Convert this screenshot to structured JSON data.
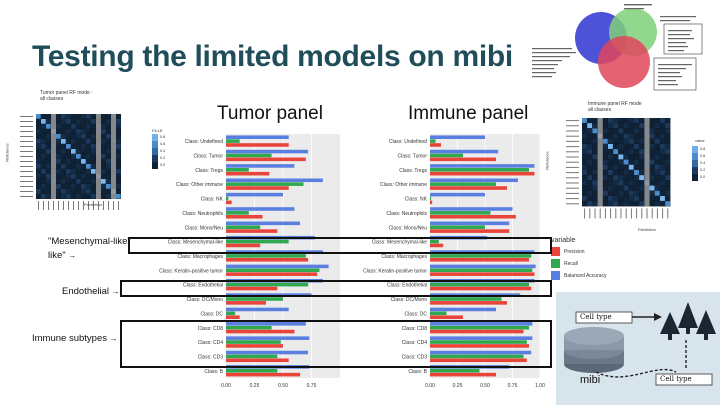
{
  "slide": {
    "title": "Testing the limited models on mibi",
    "tumor_panel_label": "Tumor panel",
    "immune_panel_label": "Immune panel"
  },
  "annotations": {
    "mesenchymal": "\"Mesenchymal-like\"",
    "endothelial": "Endothelial",
    "immune_subtypes": "Immune subtypes",
    "arrow": "→"
  },
  "heatmap_left": {
    "title_line1": "Tumor panel RF mode :",
    "title_line2": "all classes",
    "fill_label": "FILLE",
    "y_label": "Reference",
    "x_label": "Prediction",
    "legend_ticks": [
      "0.8",
      "0.6",
      "0.4",
      "0.2",
      "0.0"
    ]
  },
  "heatmap_right": {
    "title_line1": "Immune panel RF mode",
    "title_line2": "all classes",
    "fill_label": "value",
    "y_label": "Reference",
    "x_label": "Prediction",
    "legend_ticks": [
      "0.8",
      "0.6",
      "0.4",
      "0.2",
      "0.0"
    ]
  },
  "legend": {
    "title": "variable",
    "items": [
      {
        "label": "Precision",
        "color": "#e8443a"
      },
      {
        "label": "Recall",
        "color": "#2fa84f"
      },
      {
        "label": "Balanced Accuracy",
        "color": "#5b7fe0"
      }
    ]
  },
  "diagram": {
    "top_label": "Cell type",
    "bottom_label": "Cell type",
    "mibi_label": "mibi"
  },
  "chart_data": [
    {
      "type": "bar",
      "orientation": "horizontal",
      "categories": [
        "Class: Undefined",
        "Class: Tumor",
        "Class: Tregs",
        "Class: Other immune",
        "Class: NK",
        "Class: Neutrophils",
        "Class: Mono/Neu",
        "Class: Mesenchymal-like",
        "Class: Macrophages",
        "Class: Keratin-positive tumor",
        "Class: Endothelial",
        "Class: DC/Mono",
        "Class: DC",
        "Class: CD8",
        "Class: CD4",
        "Class: CD3",
        "Class: B"
      ],
      "series": [
        {
          "name": "Precision",
          "values": [
            0.55,
            0.7,
            0.38,
            0.55,
            0.05,
            0.32,
            0.45,
            0.3,
            0.72,
            0.8,
            0.45,
            0.35,
            0.12,
            0.6,
            0.5,
            0.55,
            0.65
          ]
        },
        {
          "name": "Recall",
          "values": [
            0.12,
            0.4,
            0.2,
            0.68,
            0.02,
            0.2,
            0.3,
            0.55,
            0.7,
            0.82,
            0.72,
            0.5,
            0.08,
            0.4,
            0.48,
            0.45,
            0.45
          ]
        },
        {
          "name": "Balanced Accuracy",
          "values": [
            0.55,
            0.72,
            0.6,
            0.85,
            0.5,
            0.6,
            0.65,
            0.78,
            0.85,
            0.9,
            0.85,
            0.75,
            0.55,
            0.7,
            0.73,
            0.72,
            0.73
          ]
        }
      ],
      "xlim": [
        0,
        1
      ],
      "x_ticks": [
        "0.00",
        "0.25",
        "0.50",
        "0.75"
      ]
    },
    {
      "type": "bar",
      "orientation": "horizontal",
      "categories": [
        "Class: Undefined",
        "Class: Tumor",
        "Class: Tregs",
        "Class: Other immune",
        "Class: NK",
        "Class: Neutrophils",
        "Class: Mono/Neu",
        "Class: Mesenchymal-like",
        "Class: Macrophages",
        "Class: Keratin-positive tumor",
        "Class: Endothelial",
        "Class: DC/Mono",
        "Class: DC",
        "Class: CD8",
        "Class: CD4",
        "Class: CD3",
        "Class: B"
      ],
      "series": [
        {
          "name": "Precision",
          "values": [
            0.1,
            0.6,
            0.95,
            0.7,
            0.02,
            0.78,
            0.72,
            0.12,
            0.9,
            0.95,
            0.92,
            0.7,
            0.3,
            0.85,
            0.9,
            0.88,
            0.6
          ]
        },
        {
          "name": "Recall",
          "values": [
            0.05,
            0.3,
            0.9,
            0.6,
            0.01,
            0.55,
            0.5,
            0.08,
            0.92,
            0.93,
            0.9,
            0.65,
            0.15,
            0.9,
            0.88,
            0.85,
            0.45
          ]
        },
        {
          "name": "Balanced Accuracy",
          "values": [
            0.5,
            0.62,
            0.95,
            0.8,
            0.5,
            0.75,
            0.72,
            0.52,
            0.95,
            0.96,
            0.95,
            0.82,
            0.6,
            0.93,
            0.93,
            0.92,
            0.72
          ]
        }
      ],
      "xlim": [
        0,
        1
      ],
      "x_ticks": [
        "0.00",
        "0.25",
        "0.50",
        "0.75",
        "1.00"
      ]
    }
  ]
}
